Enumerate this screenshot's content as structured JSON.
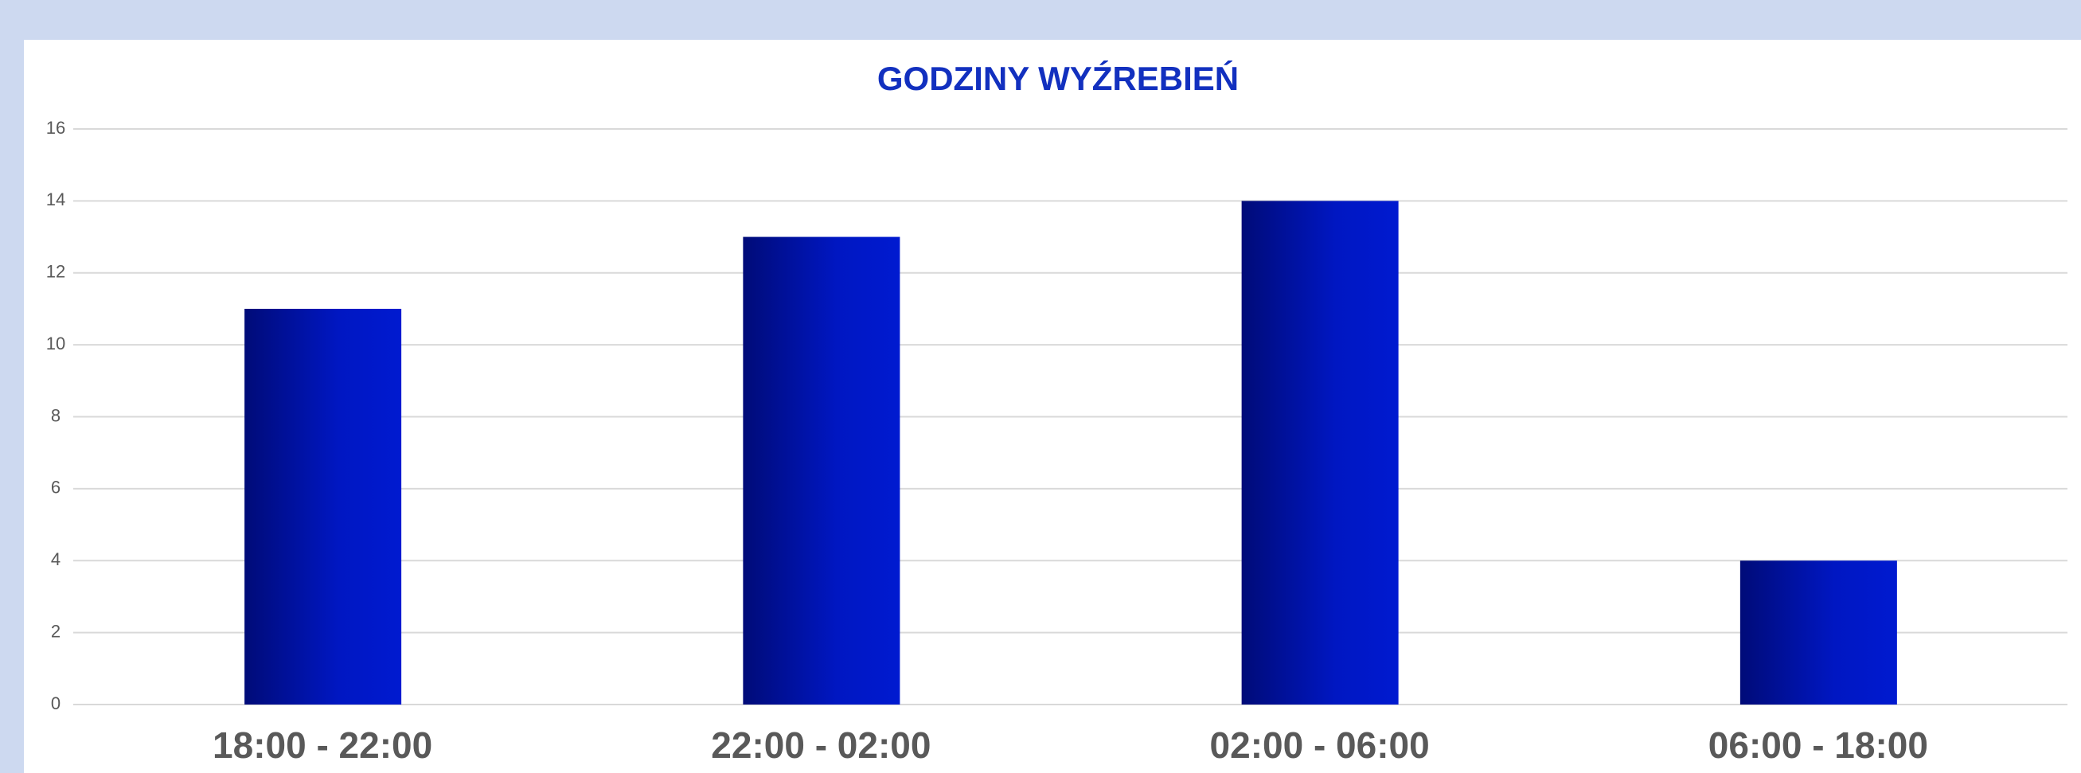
{
  "chart_data": {
    "type": "bar",
    "title": "GODZINY WYŹREBIEŃ",
    "categories": [
      "18:00 - 22:00",
      "22:00 - 02:00",
      "02:00 - 06:00",
      "06:00 - 18:00"
    ],
    "values": [
      11,
      13,
      14,
      4
    ],
    "color": "#0019cc",
    "ylim": [
      0,
      16
    ],
    "yticks": [
      0,
      2,
      4,
      6,
      8,
      10,
      12,
      14,
      16
    ],
    "grid": true
  }
}
